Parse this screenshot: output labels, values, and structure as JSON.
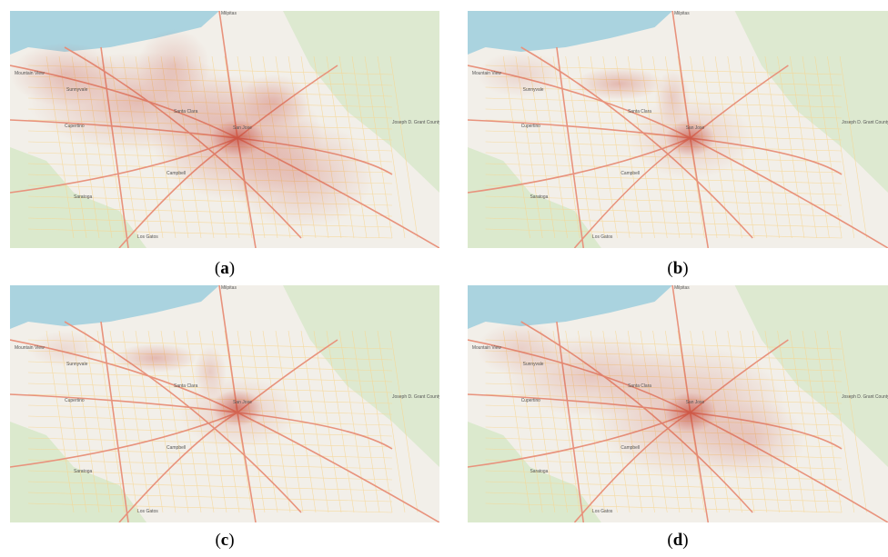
{
  "panels": [
    {
      "letter": "a",
      "variant": "a"
    },
    {
      "letter": "b",
      "variant": "b"
    },
    {
      "letter": "c",
      "variant": "c"
    },
    {
      "letter": "d",
      "variant": "d"
    }
  ],
  "map_labels": {
    "milpitas": "Milpitas",
    "mountain_view": "Mountain View",
    "sunnyvale": "Sunnyvale",
    "santa_clara": "Santa Clara",
    "cupertino": "Cupertino",
    "san_jose": "San Jose",
    "campbell": "Campbell",
    "saratoga": "Saratoga",
    "los_gatos": "Los Gatos",
    "park": "Joseph D. Grant County Park"
  },
  "colors": {
    "land": "#f2efe9",
    "water": "#aad3df",
    "parkland": "#d4e7c5",
    "roads_major": "#e8927c",
    "roads_minor": "#f7d58e",
    "heat": "#c0392b"
  }
}
